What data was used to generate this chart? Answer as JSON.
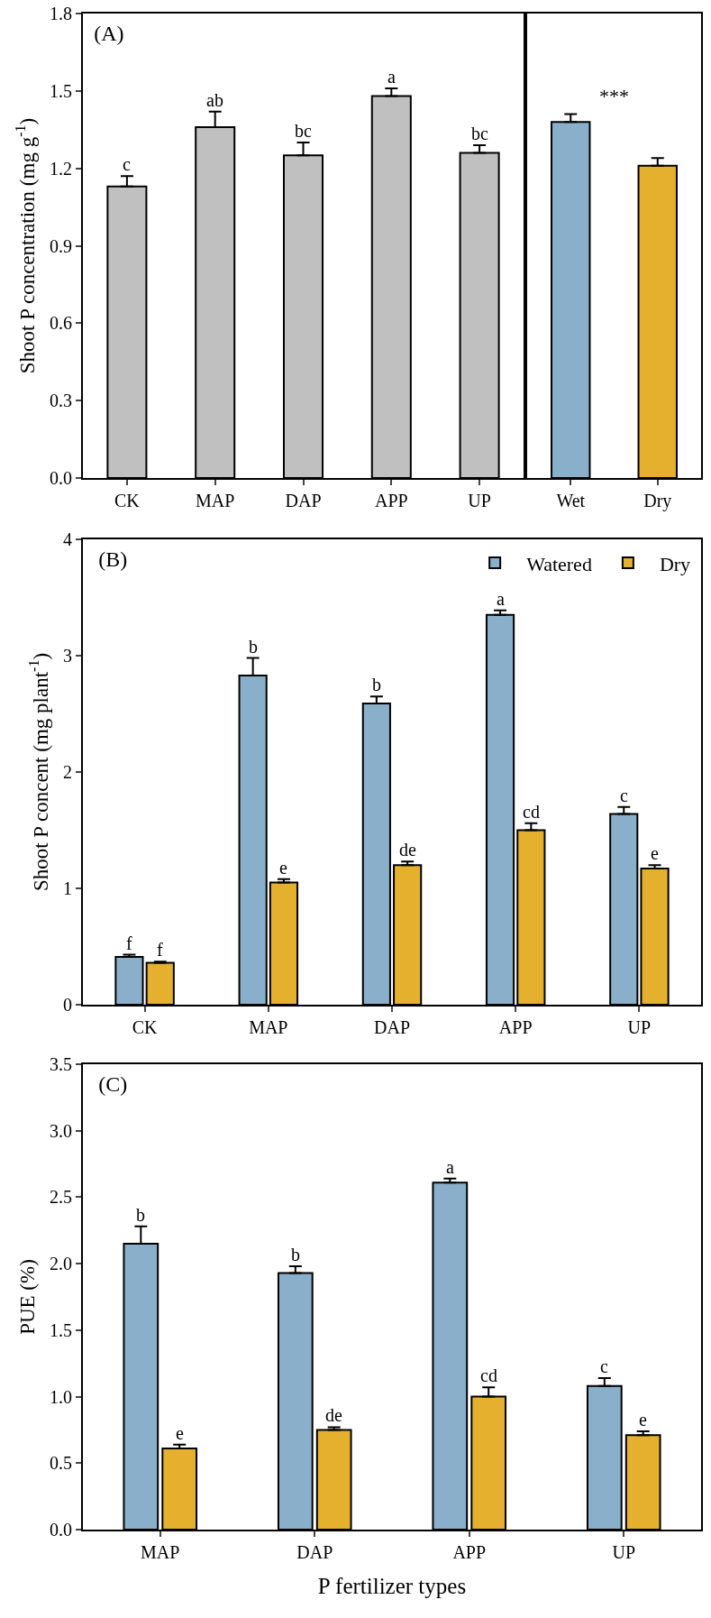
{
  "chart_data": [
    {
      "type": "bar",
      "title": "(A)",
      "ylabel": "Shoot P concentration (mg g$^{-1}$)",
      "categories": [
        "CK",
        "MAP",
        "DAP",
        "APP",
        "UP"
      ],
      "values": [
        1.13,
        1.36,
        1.25,
        1.48,
        1.26
      ],
      "errors": [
        [
          1.13,
          1.17
        ],
        [
          1.36,
          1.42
        ],
        [
          1.25,
          1.3
        ],
        [
          1.48,
          1.51
        ],
        [
          1.26,
          1.29
        ]
      ],
      "value_labels": [
        "c",
        "ab",
        "bc",
        "a",
        "bc"
      ],
      "colors": [
        "#c0c0c0",
        "#c0c0c0",
        "#c0c0c0",
        "#c0c0c0",
        "#c0c0c0"
      ],
      "ylim": [
        0,
        1.8
      ],
      "yticks": [
        {
          "value": 0,
          "label": "0.0"
        },
        0.3,
        0.6,
        0.9,
        1.2,
        1.5,
        1.8
      ],
      "grid": false,
      "legend": false
    },
    {
      "type": "bar",
      "categories": [
        "Wet",
        "Dry"
      ],
      "values": [
        1.38,
        1.21
      ],
      "errors": [
        [
          1.38,
          1.41
        ],
        [
          1.21,
          1.24
        ]
      ],
      "colors": [
        "#8aafca",
        "#e5b02e"
      ],
      "annotations": [
        "***"
      ],
      "ylim": [
        0,
        1.8
      ],
      "tick_labels": "x",
      "grid": false,
      "legend": false
    },
    {
      "type": "bar",
      "title": "(B)",
      "ylabel": "Shoot P concent (mg plant$^{-1}$)",
      "categories": [
        "CK",
        "MAP",
        "DAP",
        "APP",
        "UP"
      ],
      "series": [
        {
          "name": "Watered",
          "color": "#8aafca",
          "values": [
            0.41,
            2.83,
            2.59,
            3.35,
            1.64
          ],
          "errors": [
            [
              0.41,
              0.43
            ],
            [
              2.83,
              2.98
            ],
            [
              2.59,
              2.65
            ],
            [
              3.35,
              3.39
            ],
            [
              1.64,
              1.7
            ]
          ],
          "value_labels": [
            "f",
            "b",
            "b",
            "a",
            "c"
          ]
        },
        {
          "name": "Dry",
          "color": "#e5b02e",
          "values": [
            0.36,
            1.05,
            1.2,
            1.5,
            1.17
          ],
          "errors": [
            [
              0.36,
              0.37
            ],
            [
              1.05,
              1.08
            ],
            [
              1.2,
              1.23
            ],
            [
              1.5,
              1.56
            ],
            [
              1.17,
              1.2
            ]
          ],
          "value_labels": [
            "f",
            "e",
            "de",
            "cd",
            "e"
          ]
        }
      ],
      "ylim": [
        0,
        4
      ],
      "yticks": [
        0,
        1,
        2,
        3,
        4
      ],
      "grid": false,
      "legend": "top right"
    },
    {
      "type": "bar",
      "title": "(C)",
      "ylabel": "PUE (%)",
      "xlabel": "P fertilizer types",
      "categories": [
        "MAP",
        "DAP",
        "APP",
        "UP"
      ],
      "series": [
        {
          "color": "#8aafca",
          "values": [
            2.15,
            1.93,
            2.61,
            1.08
          ],
          "errors": [
            [
              2.15,
              2.28
            ],
            [
              1.93,
              1.98
            ],
            [
              2.61,
              2.64
            ],
            [
              1.08,
              1.14
            ]
          ],
          "value_labels": [
            "b",
            "b",
            "a",
            "c"
          ]
        },
        {
          "color": "#e5b02e",
          "values": [
            0.61,
            0.75,
            1.0,
            0.71
          ],
          "errors": [
            [
              0.61,
              0.64
            ],
            [
              0.75,
              0.77
            ],
            [
              1.0,
              1.07
            ],
            [
              0.71,
              0.74
            ]
          ],
          "value_labels": [
            "e",
            "de",
            "cd",
            "e"
          ]
        }
      ],
      "ylim": [
        0,
        3.5
      ],
      "yticks": [
        {
          "value": 0,
          "label": "0.0"
        },
        0.5,
        {
          "value": 1,
          "label": "1.0"
        },
        1.5,
        {
          "value": 2,
          "label": "2.0"
        },
        2.5,
        {
          "value": 3,
          "label": "3.0"
        },
        3.5
      ],
      "grid": false,
      "legend": false
    }
  ]
}
